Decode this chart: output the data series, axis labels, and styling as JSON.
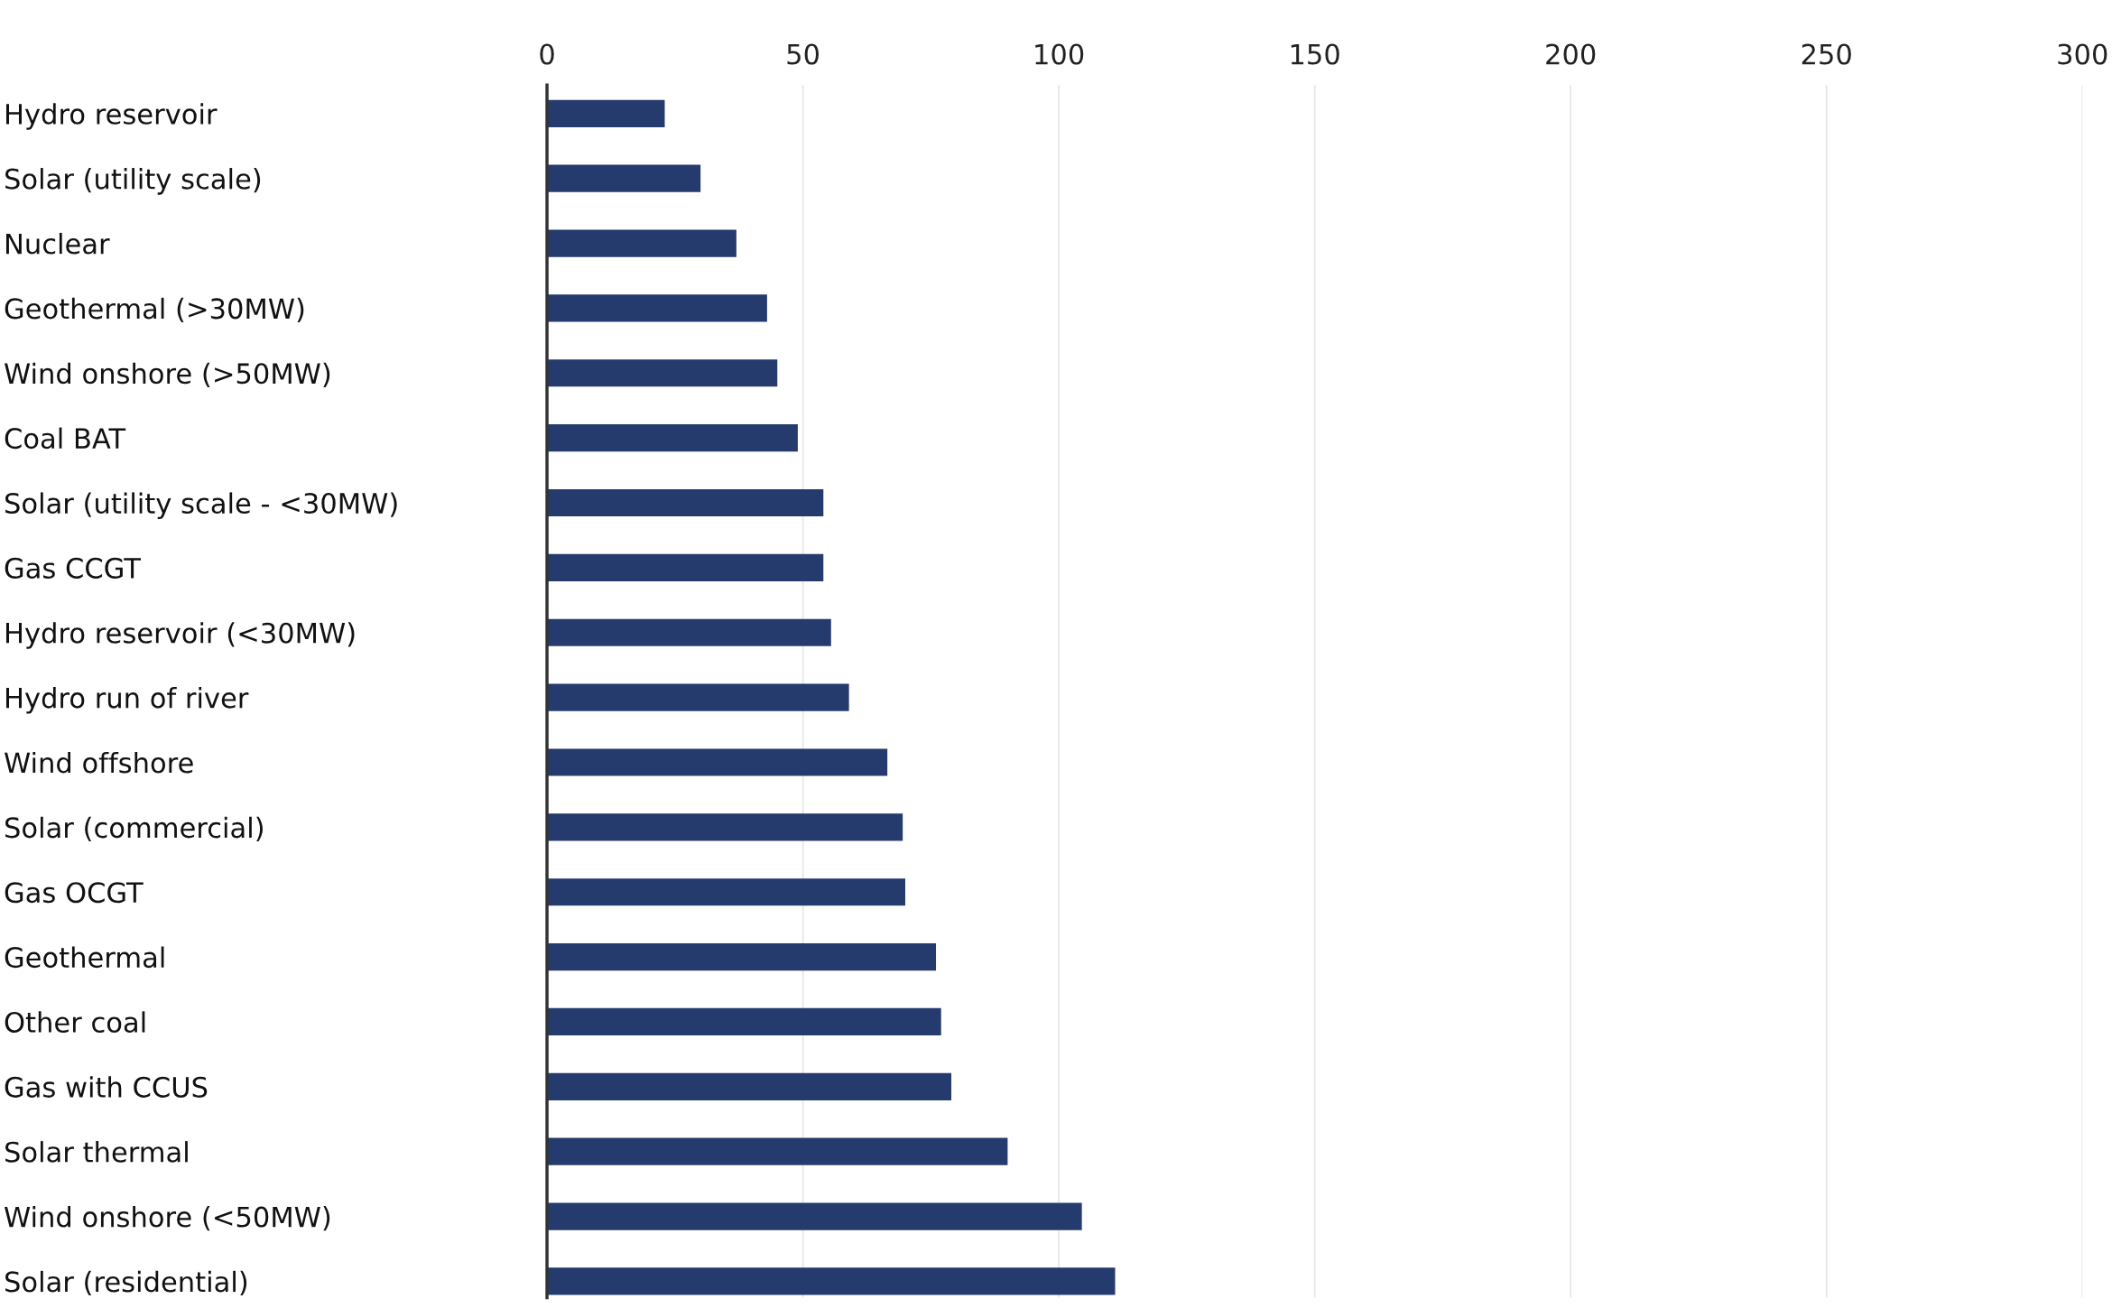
{
  "chart_data": {
    "type": "bar",
    "orientation": "horizontal",
    "categories": [
      "Hydro reservoir",
      "Solar (utility scale)",
      "Nuclear",
      "Geothermal (>30MW)",
      "Wind onshore (>50MW)",
      "Coal BAT",
      "Solar (utility scale - <30MW)",
      "Gas CCGT",
      "Hydro reservoir (<30MW)",
      "Hydro run of river",
      "Wind offshore",
      "Solar (commercial)",
      "Gas OCGT",
      "Geothermal",
      "Other coal",
      "Gas with CCUS",
      "Solar thermal",
      "Wind onshore (<50MW)",
      "Solar (residential)"
    ],
    "values": [
      23,
      30,
      37,
      43,
      45,
      49,
      54,
      54,
      55.5,
      59,
      66.5,
      69.5,
      70,
      76,
      77,
      79,
      90,
      104.5,
      111
    ],
    "color": "#253a6d",
    "xlim": [
      0,
      300
    ],
    "xticks": [
      0,
      50,
      100,
      150,
      200,
      250,
      300
    ],
    "grid": "x",
    "legend": false
  }
}
